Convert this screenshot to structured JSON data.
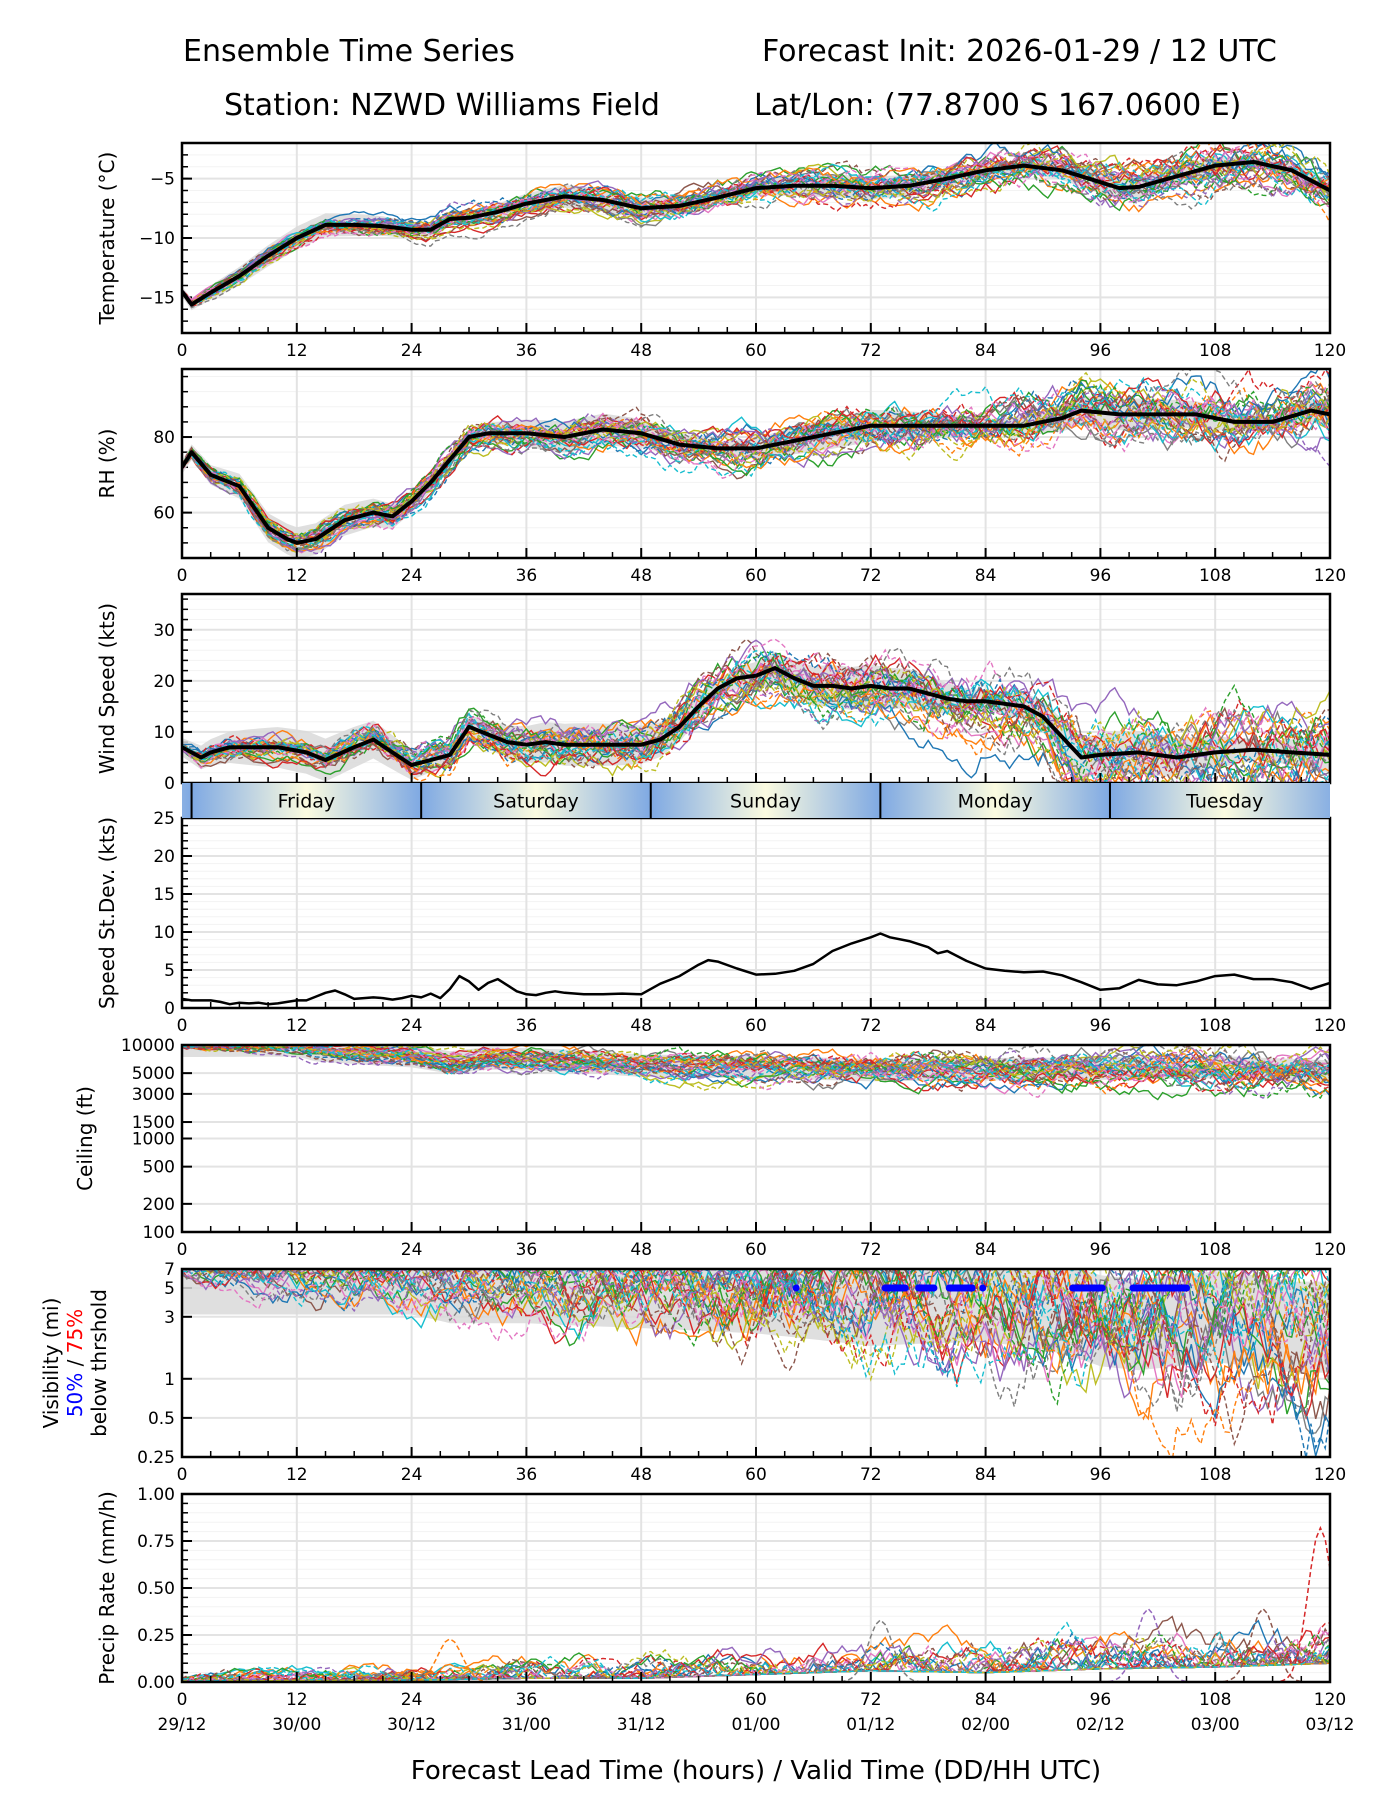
{
  "header": {
    "title_left": "Ensemble Time Series",
    "title_right": "Forecast Init: 2026-01-29 / 12 UTC",
    "station": "Station: NZWD Williams Field",
    "latlon": "Lat/Lon: (77.8700 S 167.0600 E)"
  },
  "chart_data": {
    "type": "line",
    "x_range": [
      0,
      120
    ],
    "x_ticks": [
      0,
      12,
      24,
      36,
      48,
      60,
      72,
      84,
      96,
      108,
      120
    ],
    "x_tick_labels": [
      "0",
      "12",
      "24",
      "36",
      "48",
      "60",
      "72",
      "84",
      "96",
      "108",
      "120"
    ],
    "valid_time_labels": [
      "29/12",
      "30/00",
      "30/12",
      "31/00",
      "31/12",
      "01/00",
      "01/12",
      "02/00",
      "02/12",
      "03/00",
      "03/12"
    ],
    "xlabel": "Forecast Lead Time (hours) / Valid Time (DD/HH UTC)",
    "ensemble_members": 30,
    "member_colors": [
      "#1f77b4",
      "#ff7f0e",
      "#2ca02c",
      "#d62728",
      "#9467bd",
      "#8c564b",
      "#e377c2",
      "#7f7f7f",
      "#bcbd22",
      "#17becf"
    ],
    "mean_color": "#000000",
    "spread_color": "#d9d9d9",
    "day_bar": {
      "labels": [
        "Friday",
        "Saturday",
        "Sunday",
        "Monday",
        "Tuesday"
      ],
      "dividers_hours": [
        1,
        25,
        49,
        73,
        97
      ],
      "edge_color": "#7fa9e3",
      "center_color": "#fbfbe0"
    },
    "panels": [
      {
        "id": "temperature",
        "ylabel": "Temperature (°C)",
        "ylim": [
          -18,
          -2
        ],
        "yticks": [
          -15,
          -10,
          -5
        ],
        "ytick_labels": [
          "−15",
          "−10",
          "−5"
        ],
        "scale": "linear",
        "mean": {
          "x": [
            0,
            1,
            3,
            6,
            9,
            12,
            15,
            18,
            21,
            24,
            26,
            28,
            30,
            33,
            36,
            40,
            44,
            48,
            52,
            56,
            60,
            64,
            68,
            72,
            76,
            80,
            84,
            88,
            92,
            96,
            98,
            100,
            104,
            108,
            112,
            116,
            120
          ],
          "y": [
            -14.5,
            -15.6,
            -14.6,
            -13.2,
            -11.5,
            -10.0,
            -8.9,
            -8.9,
            -9.0,
            -9.3,
            -9.3,
            -8.4,
            -8.3,
            -7.8,
            -7.1,
            -6.5,
            -6.8,
            -7.5,
            -7.3,
            -6.6,
            -5.8,
            -5.6,
            -5.6,
            -5.8,
            -5.6,
            -5.0,
            -4.3,
            -3.9,
            -4.3,
            -5.3,
            -5.8,
            -5.7,
            -4.8,
            -3.9,
            -3.6,
            -4.3,
            -6.0
          ]
        },
        "spread": 0.7
      },
      {
        "id": "rh",
        "ylabel": "RH (%)",
        "ylim": [
          48,
          98
        ],
        "yticks": [
          60,
          80
        ],
        "ytick_labels": [
          "60",
          "80"
        ],
        "scale": "linear",
        "mean": {
          "x": [
            0,
            1,
            3,
            6,
            9,
            11,
            12,
            14,
            17,
            20,
            22,
            24,
            26,
            28,
            30,
            32,
            36,
            40,
            44,
            48,
            52,
            56,
            60,
            64,
            68,
            72,
            76,
            80,
            84,
            88,
            92,
            94,
            98,
            102,
            106,
            110,
            114,
            118,
            120
          ],
          "y": [
            72,
            76,
            70,
            67,
            56,
            53,
            52,
            53,
            58,
            60,
            59,
            63,
            68,
            74,
            80,
            81,
            81,
            80,
            82,
            81,
            78,
            77,
            77,
            79,
            81,
            83,
            83,
            83,
            83,
            83,
            85,
            87,
            86,
            86,
            86,
            84,
            84,
            87,
            86
          ]
        },
        "spread": 3
      },
      {
        "id": "wind_speed",
        "ylabel": "Wind Speed (kts)",
        "ylim": [
          0,
          37
        ],
        "yticks": [
          0,
          10,
          20,
          30
        ],
        "ytick_labels": [
          "0",
          "10",
          "20",
          "30"
        ],
        "scale": "linear",
        "mean": {
          "x": [
            0,
            1,
            2,
            3,
            5,
            8,
            10,
            13,
            15,
            18,
            20,
            22,
            24,
            26,
            27,
            28,
            30,
            32,
            34,
            36,
            38,
            40,
            44,
            48,
            50,
            52,
            54,
            56,
            58,
            60,
            62,
            64,
            66,
            68,
            70,
            72,
            74,
            76,
            78,
            80,
            82,
            84,
            86,
            88,
            90,
            92,
            94,
            96,
            100,
            104,
            108,
            112,
            116,
            120
          ],
          "y": [
            7,
            6,
            5,
            6,
            7,
            7,
            7,
            6,
            4.5,
            7,
            8.5,
            6,
            3.5,
            4.5,
            5,
            5.5,
            11,
            9.5,
            8,
            7.5,
            8,
            7.5,
            7.5,
            7.5,
            8.5,
            11,
            15,
            18.5,
            20.5,
            21,
            22.5,
            20.5,
            19,
            19,
            18.5,
            19,
            18.5,
            18.5,
            17.5,
            16.5,
            16,
            16,
            15.5,
            15,
            13,
            9,
            5,
            5.5,
            6,
            5,
            6,
            6.5,
            6,
            5.5
          ]
        },
        "spread": 3
      },
      {
        "id": "speed_stddev",
        "ylabel": "Speed St.Dev. (kts)",
        "ylim": [
          0,
          25
        ],
        "yticks": [
          0,
          5,
          10,
          15,
          20,
          25
        ],
        "ytick_labels": [
          "0",
          "5",
          "10",
          "15",
          "20",
          "25"
        ],
        "scale": "linear",
        "series": {
          "x": [
            0,
            1,
            2,
            3,
            4,
            5,
            6,
            7,
            8,
            9,
            10,
            11,
            12,
            13,
            14,
            15,
            16,
            17,
            18,
            19,
            20,
            21,
            22,
            23,
            24,
            25,
            26,
            27,
            28,
            29,
            30,
            31,
            32,
            33,
            34,
            35,
            36,
            37,
            38,
            39,
            40,
            42,
            44,
            46,
            48,
            50,
            52,
            54,
            55,
            56,
            58,
            60,
            62,
            64,
            66,
            68,
            70,
            72,
            73,
            74,
            76,
            78,
            79,
            80,
            82,
            84,
            86,
            88,
            90,
            92,
            94,
            96,
            98,
            100,
            102,
            104,
            106,
            108,
            110,
            112,
            114,
            116,
            118,
            120
          ],
          "y": [
            1.2,
            1.0,
            1.0,
            1.0,
            0.8,
            0.5,
            0.7,
            0.6,
            0.7,
            0.5,
            0.6,
            0.8,
            1.0,
            1.0,
            1.5,
            2.0,
            2.3,
            1.8,
            1.2,
            1.3,
            1.4,
            1.3,
            1.1,
            1.3,
            1.6,
            1.4,
            1.9,
            1.3,
            2.5,
            4.2,
            3.5,
            2.4,
            3.3,
            3.8,
            3.0,
            2.2,
            1.8,
            1.7,
            2.0,
            2.2,
            2.0,
            1.8,
            1.8,
            1.9,
            1.8,
            3.2,
            4.2,
            5.7,
            6.3,
            6.1,
            5.2,
            4.4,
            4.5,
            4.9,
            5.8,
            7.5,
            8.5,
            9.3,
            9.8,
            9.3,
            8.8,
            8.0,
            7.2,
            7.5,
            6.2,
            5.2,
            4.9,
            4.7,
            4.8,
            4.3,
            3.4,
            2.4,
            2.6,
            3.7,
            3.1,
            3.0,
            3.5,
            4.2,
            4.4,
            3.8,
            3.8,
            3.4,
            2.5,
            3.3
          ]
        }
      },
      {
        "id": "ceiling",
        "ylabel": "Ceiling (ft)",
        "ylim": [
          100,
          10000
        ],
        "yticks": [
          100,
          200,
          500,
          1000,
          1500,
          3000,
          5000,
          10000
        ],
        "ytick_labels": [
          "100",
          "200",
          "500",
          "1000",
          "1500",
          "3000",
          "5000",
          "10000"
        ],
        "scale": "log",
        "mean": {
          "x": [
            0,
            12,
            14,
            20,
            24,
            28,
            32,
            40,
            48,
            60,
            72,
            84,
            96,
            108,
            120
          ],
          "y": [
            9800,
            9900,
            8800,
            8000,
            7600,
            6500,
            7200,
            6800,
            6000,
            5800,
            5400,
            5500,
            5600,
            5800,
            5200
          ]
        },
        "spread": 0.12
      },
      {
        "id": "visibility",
        "ylabel": "Visibility (mi)",
        "ylabel_line2_a": "50%",
        "ylabel_line2_sep": " / ",
        "ylabel_line2_b": "75%",
        "ylabel_line3": "below thrshold",
        "ylabel_a_color": "#0000ff",
        "ylabel_b_color": "#ff0000",
        "ylim": [
          0.25,
          7
        ],
        "yticks": [
          0.25,
          0.5,
          1,
          3,
          5,
          7
        ],
        "ytick_labels": [
          "0.25",
          "0.5",
          "1",
          "3",
          "5",
          "7"
        ],
        "scale": "log",
        "mean": {
          "x": [
            0,
            24,
            28,
            32,
            36,
            40,
            48,
            60,
            66,
            72,
            78,
            84,
            90,
            96,
            100,
            104,
            108,
            112,
            116,
            120
          ],
          "y": [
            7,
            7,
            6,
            6,
            6,
            5.8,
            5.5,
            5,
            4.5,
            4,
            4.2,
            4.3,
            3.8,
            2.8,
            2.6,
            2.8,
            3,
            2.8,
            2.5,
            2.5
          ]
        },
        "spread": 0.35,
        "threshold_50pct_hours": [
          64.2,
          73.5,
          74.2,
          74.9,
          75.6,
          77.0,
          77.8,
          78.6,
          80.2,
          81.0,
          81.8,
          82.6,
          83.7,
          93.1,
          93.9,
          94.7,
          95.5,
          96.2,
          99.4,
          100.2,
          101.0,
          101.8,
          102.6,
          103.4,
          104.2,
          105.0
        ],
        "threshold_level": 5
      },
      {
        "id": "precip_rate",
        "ylabel": "Precip Rate (mm/h)",
        "ylim": [
          0,
          1.0
        ],
        "yticks": [
          0.0,
          0.25,
          0.5,
          0.75,
          1.0
        ],
        "ytick_labels": [
          "0.00",
          "0.25",
          "0.50",
          "0.75",
          "1.00"
        ],
        "scale": "linear",
        "mean": {
          "x": [
            0,
            24,
            36,
            48,
            60,
            72,
            84,
            96,
            108,
            120
          ],
          "y": [
            0.005,
            0.01,
            0.02,
            0.02,
            0.04,
            0.06,
            0.05,
            0.07,
            0.08,
            0.1
          ]
        },
        "peaks": [
          {
            "x": 28,
            "y": 0.23,
            "color": "#ff7f0e"
          },
          {
            "x": 73,
            "y": 0.33,
            "color": "#7f7f7f"
          },
          {
            "x": 101,
            "y": 0.39,
            "color": "#9467bd"
          },
          {
            "x": 113,
            "y": 0.39,
            "color": "#8c564b"
          },
          {
            "x": 119,
            "y": 0.82,
            "color": "#d62728"
          }
        ]
      }
    ]
  }
}
